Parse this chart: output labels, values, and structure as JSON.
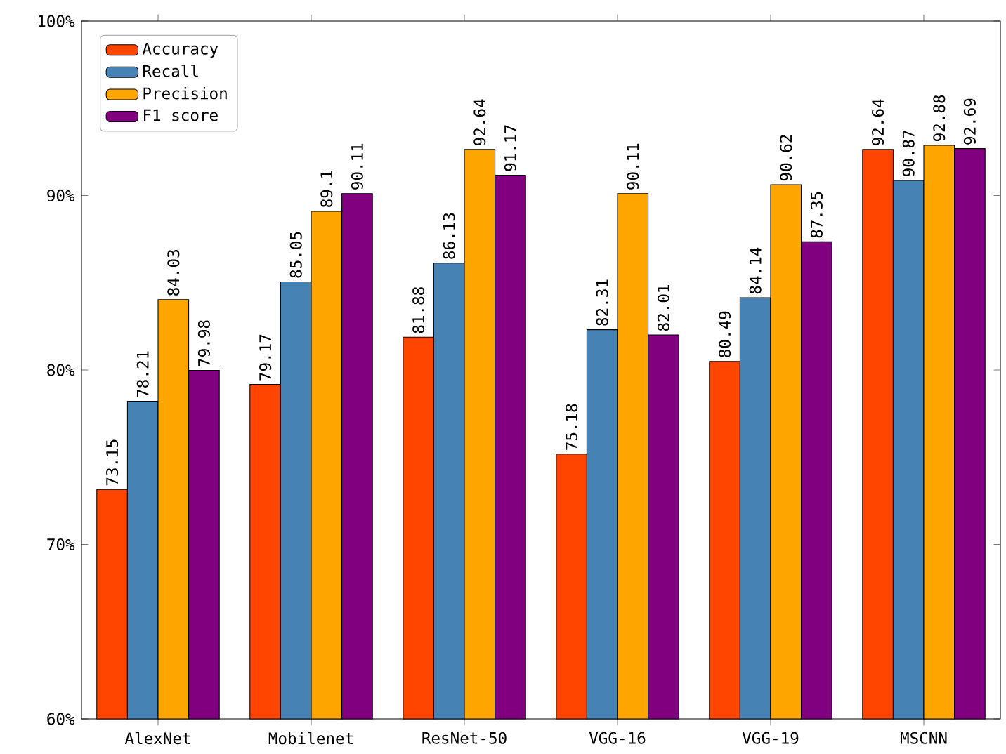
{
  "chart_data": {
    "type": "bar",
    "categories": [
      "AlexNet",
      "Mobilenet",
      "ResNet-50",
      "VGG-16",
      "VGG-19",
      "MSCNN"
    ],
    "series": [
      {
        "name": "Accuracy",
        "color": "#ff4500",
        "values": [
          73.15,
          79.17,
          81.88,
          75.18,
          80.49,
          92.64
        ],
        "value_labels": [
          "73.15",
          "79.17",
          "81.88",
          "75.18",
          "80.49",
          "92.64"
        ]
      },
      {
        "name": "Recall",
        "color": "#4682b4",
        "values": [
          78.21,
          85.05,
          86.13,
          82.31,
          84.14,
          90.87
        ],
        "value_labels": [
          "78.21",
          "85.05",
          "86.13",
          "82.31",
          "84.14",
          "90.87"
        ]
      },
      {
        "name": "Precision",
        "color": "#ffa500",
        "values": [
          84.03,
          89.1,
          92.64,
          90.11,
          90.62,
          92.88
        ],
        "value_labels": [
          "84.03",
          "89.1",
          "92.64",
          "90.11",
          "90.62",
          "92.88"
        ]
      },
      {
        "name": "F1 score",
        "color": "#800080",
        "values": [
          79.98,
          90.11,
          91.17,
          82.01,
          87.35,
          92.69
        ],
        "value_labels": [
          "79.98",
          "90.11",
          "91.17",
          "82.01",
          "87.35",
          "92.69"
        ]
      }
    ],
    "ylim": [
      60,
      100
    ],
    "yticks": [
      {
        "value": 60,
        "label": "60%"
      },
      {
        "value": 70,
        "label": "70%"
      },
      {
        "value": 80,
        "label": "80%"
      },
      {
        "value": 90,
        "label": "90%"
      },
      {
        "value": 100,
        "label": "100%"
      }
    ],
    "legend": "top left",
    "grid": false
  }
}
